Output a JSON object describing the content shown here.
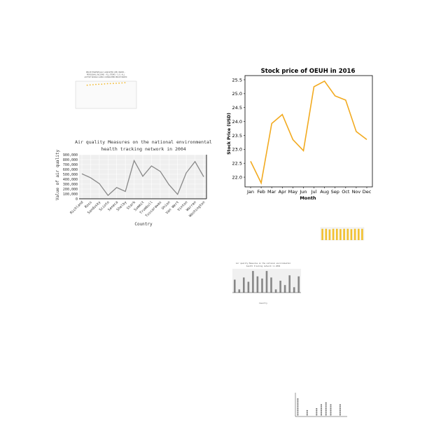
{
  "chart_data": [
    {
      "id": "tiny-scatter",
      "type": "scatter",
      "title": "PRICE ESSENTIALLY ADJUSTED (PE) INDEX - PERSONAL INCOME - ALL ITEMS - U.S. ALL ACTIVE WORLD AREA CONSUMER PRICE INDEX",
      "x": [
        2004,
        2005,
        2006,
        2007,
        2008,
        2009,
        2010,
        2011,
        2012,
        2013,
        2014,
        2015,
        2016,
        2017
      ],
      "y": [
        94,
        95,
        96,
        97,
        97.5,
        98,
        99,
        100,
        100.5,
        101,
        101.5,
        102,
        103,
        104
      ],
      "xlim": [
        2000,
        2021
      ],
      "ylim": [
        0,
        110
      ],
      "accent": "#f2b82a"
    },
    {
      "id": "air-quality-line",
      "type": "line",
      "title_line1": "Air quality Measures on the national environmental",
      "title_line2": "health tracking network in 2004",
      "xlabel": "Country",
      "ylabel": "Value of air quality",
      "categories": [
        "Richland",
        "Ross",
        "Sandusky",
        "Scioto",
        "Seneca",
        "Shelby",
        "Stark",
        "Summit",
        "Trumbull",
        "Tuscarawas",
        "Union",
        "Van Wert",
        "Vinton",
        "Warren",
        "Washington"
      ],
      "values": [
        510000,
        430000,
        310000,
        70000,
        230000,
        150000,
        780000,
        460000,
        670000,
        560000,
        290000,
        90000,
        530000,
        760000,
        450000
      ],
      "yticks": [
        "0",
        "100,000",
        "200,000",
        "300,000",
        "400,000",
        "500,000",
        "600,000",
        "700,000",
        "800,000",
        "900,000"
      ],
      "ylim": [
        0,
        900000
      ],
      "color": "#888888"
    },
    {
      "id": "stock-price",
      "type": "line",
      "title": "Stock price of OEUH in 2016",
      "xlabel": "Month",
      "ylabel": "Stock Price (USD)",
      "categories": [
        "Jan",
        "Feb",
        "Mar",
        "Apr",
        "May",
        "Jun",
        "Jul",
        "Aug",
        "Sep",
        "Oct",
        "Nov",
        "Dec"
      ],
      "values": [
        22.57,
        21.79,
        23.93,
        24.25,
        23.35,
        22.95,
        25.25,
        25.45,
        24.92,
        24.77,
        23.64,
        23.35
      ],
      "yticks": [
        "22.0",
        "22.5",
        "23.0",
        "23.5",
        "24.0",
        "24.5",
        "25.0",
        "25.5"
      ],
      "ylim": [
        21.65,
        25.65
      ],
      "color": "#f2aa1f"
    },
    {
      "id": "tiny-yellow-bars",
      "type": "bar",
      "values": [
        9,
        9,
        8.5,
        9,
        9,
        8.8,
        9,
        9,
        8.7,
        9,
        9,
        9
      ],
      "ylim": [
        0,
        10
      ],
      "color": "#f2c12e"
    },
    {
      "id": "air-quality-bars",
      "type": "bar",
      "title_line1": "Air quality Measures on the national environmental",
      "title_line2": "health tracking network in 2004",
      "xlabel": "Country",
      "values": [
        6,
        1.5,
        7,
        5,
        10,
        7.5,
        6.5,
        10,
        7,
        1.5,
        5.5,
        3.5,
        8,
        2.5,
        7.5
      ],
      "ylim": [
        0,
        11
      ],
      "color": "#888888"
    },
    {
      "id": "tiny-dot-plot",
      "type": "scatter",
      "columns": [
        9,
        0,
        3,
        0,
        4,
        6,
        7,
        6,
        0,
        6,
        0
      ],
      "ylim": [
        0,
        11
      ],
      "color": "#777777"
    }
  ]
}
